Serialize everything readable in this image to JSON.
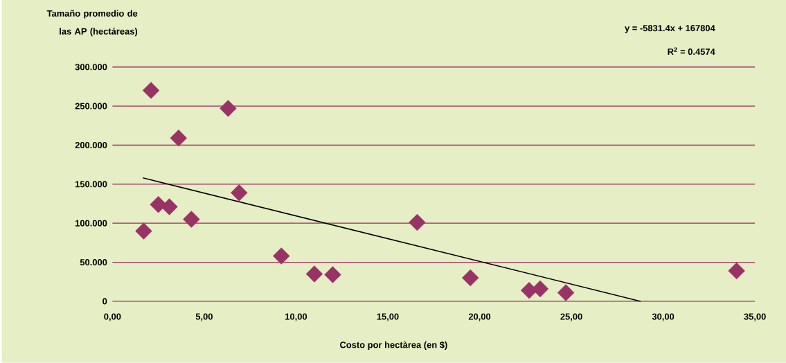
{
  "chart_data": {
    "type": "scatter",
    "xlabel": "Costo por hectàrea (en $)",
    "ylabel": "Tamaño promedio de las AP (hectáreas)",
    "annotations": [
      "y = -5831.4x + 167804",
      "R$^{2}$ = 0.4574"
    ],
    "series": [
      {
        "color": "#993366",
        "marker": "diamond",
        "x": [
          1.7,
          2.1,
          2.5,
          3.1,
          3.6,
          4.3,
          6.3,
          6.9,
          9.2,
          11.0,
          12.0,
          16.6,
          19.5,
          22.7,
          23.3,
          24.7,
          34.0
        ],
        "values": [
          90000,
          270000,
          124000,
          121000,
          209000,
          105000,
          247000,
          139000,
          58000,
          35000,
          34000,
          101000,
          30000,
          14000,
          16000,
          11000,
          39000
        ]
      },
      {
        "type": "line",
        "color": "#000000",
        "marker": "none",
        "x": [
          1.66,
          28.77
        ],
        "values": [
          158000,
          0
        ]
      }
    ],
    "xlim": [
      0,
      35
    ],
    "xticks": [
      {
        "value": 0,
        "label": "0,00"
      },
      {
        "value": 5,
        "label": "5,00"
      },
      {
        "value": 10,
        "label": "10,00"
      },
      {
        "value": 15,
        "label": "15,00"
      },
      {
        "value": 20,
        "label": "20,00"
      },
      {
        "value": 25,
        "label": "25,00"
      },
      {
        "value": 30,
        "label": "30,00"
      },
      {
        "value": 35,
        "label": "35,00"
      }
    ],
    "ylim": [
      0,
      300000
    ],
    "yticks": [
      0,
      {
        "value": 50000,
        "label": "50.000"
      },
      {
        "value": 100000,
        "label": "100.000"
      },
      {
        "value": 150000,
        "label": "150.000"
      },
      {
        "value": 200000,
        "label": "200.000"
      },
      {
        "value": 250000,
        "label": "250.000"
      },
      {
        "value": 300000,
        "label": "300.000"
      }
    ],
    "grid": "y"
  }
}
